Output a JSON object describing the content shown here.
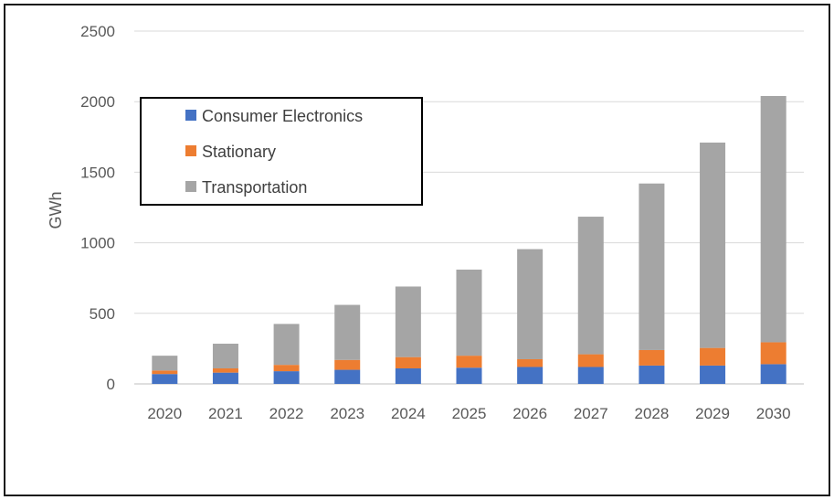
{
  "chart_data": {
    "type": "bar",
    "stacked": true,
    "title": "",
    "xlabel": "",
    "ylabel": "GWh",
    "ylim": [
      0,
      2500
    ],
    "yticks": [
      0,
      500,
      1000,
      1500,
      2000,
      2500
    ],
    "grid": true,
    "legend_position": "top-left",
    "categories": [
      "2020",
      "2021",
      "2022",
      "2023",
      "2024",
      "2025",
      "2026",
      "2027",
      "2028",
      "2029",
      "2030"
    ],
    "series": [
      {
        "name": "Consumer Electronics",
        "color": "#4472c4",
        "values": [
          70,
          80,
          90,
          100,
          110,
          115,
          120,
          120,
          130,
          130,
          140
        ]
      },
      {
        "name": "Stationary",
        "color": "#ed7d31",
        "values": [
          25,
          30,
          45,
          70,
          80,
          85,
          55,
          90,
          110,
          125,
          155
        ]
      },
      {
        "name": "Transportation",
        "color": "#a5a5a5",
        "values": [
          105,
          175,
          290,
          390,
          500,
          610,
          780,
          975,
          1180,
          1455,
          1745
        ]
      }
    ]
  }
}
